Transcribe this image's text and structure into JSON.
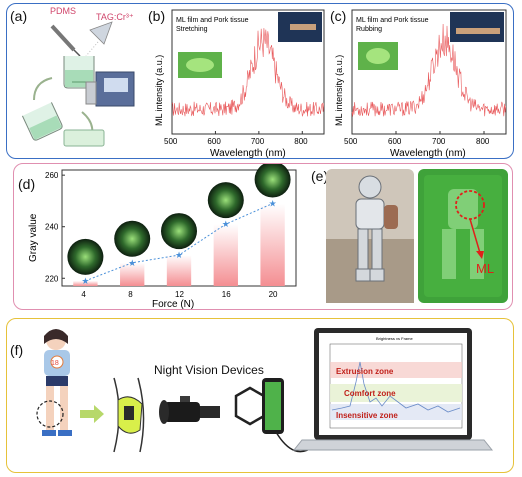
{
  "panels": {
    "a": {
      "label": "(a)",
      "pdms": "PDMS",
      "taggcr": "TAG:Cr³⁺"
    },
    "b": {
      "label": "(b)",
      "title1": "ML film and Pork tissue",
      "title2": "Stretching"
    },
    "c": {
      "label": "(c)",
      "title1": "ML film and Pork tissue",
      "title2": "Rubbing"
    },
    "d": {
      "label": "(d)"
    },
    "e": {
      "label": "(e)",
      "ml": "ML"
    },
    "f": {
      "label": "(f)",
      "nvd": "Night Vision Devices",
      "badge": "18",
      "screen_title": "Brightness vs Frame",
      "zones": [
        "Extrusion zone",
        "Comfort zone",
        "Insensitive zone"
      ]
    }
  },
  "chart_data": [
    {
      "type": "line",
      "title": "",
      "xlabel": "Wavelength (nm)",
      "ylabel": "ML intensity (a.u.)",
      "xlim": [
        500,
        850
      ],
      "xticks": [
        500,
        600,
        700,
        800
      ],
      "peak": 710,
      "color": "#e8585a"
    },
    {
      "type": "line",
      "title": "",
      "xlabel": "Wavelength (nm)",
      "ylabel": "ML intensity (a.u.)",
      "xlim": [
        500,
        850
      ],
      "xticks": [
        500,
        600,
        700,
        800
      ],
      "peak": 710,
      "color": "#e8585a"
    },
    {
      "type": "bar",
      "categories": [
        "4",
        "8",
        "12",
        "16",
        "20"
      ],
      "values": [
        219,
        226,
        229,
        241,
        249
      ],
      "xlabel": "Force (N)",
      "ylabel": "Gray value",
      "ylim": [
        217,
        262
      ],
      "yticks": [
        220,
        240,
        260
      ],
      "bar_color": "#f7a9ab",
      "line_color": "#4a90d9"
    }
  ]
}
